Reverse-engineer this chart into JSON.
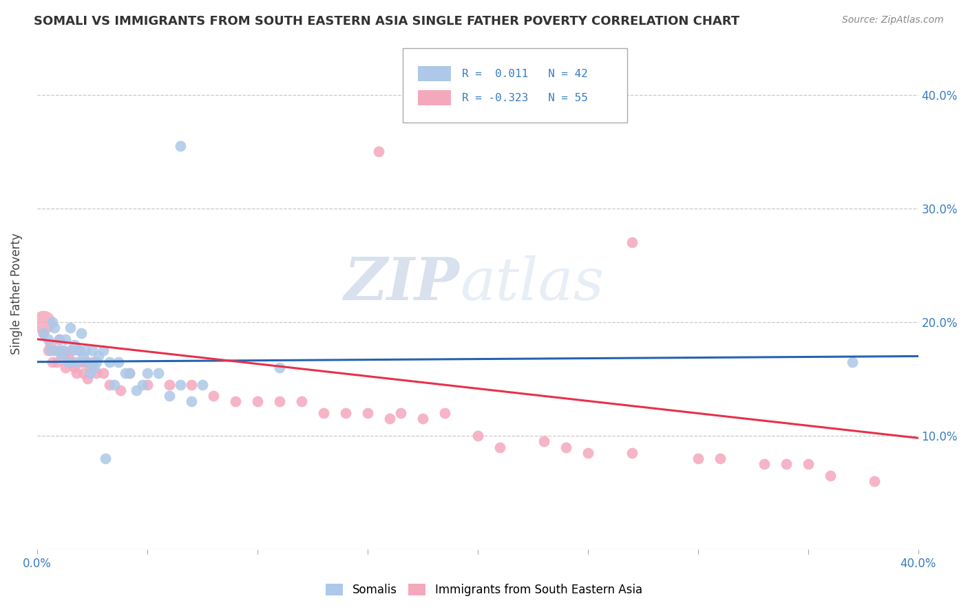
{
  "title": "SOMALI VS IMMIGRANTS FROM SOUTH EASTERN ASIA SINGLE FATHER POVERTY CORRELATION CHART",
  "source": "Source: ZipAtlas.com",
  "ylabel": "Single Father Poverty",
  "xlim": [
    0.0,
    0.4
  ],
  "ylim": [
    0.0,
    0.45
  ],
  "yticks": [
    0.1,
    0.2,
    0.3,
    0.4
  ],
  "ytick_labels": [
    "10.0%",
    "20.0%",
    "30.0%",
    "40.0%"
  ],
  "xticks": [
    0.0,
    0.05,
    0.1,
    0.15,
    0.2,
    0.25,
    0.3,
    0.35,
    0.4
  ],
  "somali_R": "0.011",
  "somali_N": "42",
  "sea_R": "-0.323",
  "sea_N": "55",
  "legend_labels": [
    "Somalis",
    "Immigrants from South Eastern Asia"
  ],
  "somali_color": "#adc8e8",
  "sea_color": "#f4a8bc",
  "line_somali_color": "#2563b0",
  "line_sea_color": "#e8304a",
  "background_color": "#ffffff",
  "somali_x": [
    0.003,
    0.005,
    0.006,
    0.007,
    0.008,
    0.009,
    0.01,
    0.011,
    0.012,
    0.013,
    0.014,
    0.015,
    0.016,
    0.017,
    0.018,
    0.019,
    0.02,
    0.021,
    0.022,
    0.023,
    0.024,
    0.025,
    0.026,
    0.027,
    0.028,
    0.03,
    0.031,
    0.033,
    0.035,
    0.037,
    0.04,
    0.042,
    0.045,
    0.048,
    0.05,
    0.055,
    0.06,
    0.065,
    0.07,
    0.075,
    0.11,
    0.37
  ],
  "somali_y": [
    0.19,
    0.185,
    0.175,
    0.2,
    0.195,
    0.175,
    0.185,
    0.17,
    0.175,
    0.185,
    0.165,
    0.195,
    0.175,
    0.18,
    0.165,
    0.175,
    0.19,
    0.17,
    0.175,
    0.165,
    0.155,
    0.175,
    0.16,
    0.165,
    0.17,
    0.175,
    0.08,
    0.165,
    0.145,
    0.165,
    0.155,
    0.155,
    0.14,
    0.145,
    0.155,
    0.155,
    0.135,
    0.145,
    0.13,
    0.145,
    0.16,
    0.165
  ],
  "sea_x": [
    0.003,
    0.005,
    0.006,
    0.007,
    0.008,
    0.009,
    0.01,
    0.011,
    0.012,
    0.013,
    0.014,
    0.015,
    0.016,
    0.017,
    0.018,
    0.019,
    0.02,
    0.021,
    0.022,
    0.023,
    0.024,
    0.025,
    0.027,
    0.03,
    0.033,
    0.038,
    0.042,
    0.05,
    0.06,
    0.07,
    0.08,
    0.09,
    0.1,
    0.11,
    0.12,
    0.13,
    0.14,
    0.15,
    0.16,
    0.165,
    0.175,
    0.185,
    0.2,
    0.21,
    0.23,
    0.24,
    0.25,
    0.27,
    0.3,
    0.31,
    0.33,
    0.34,
    0.35,
    0.36,
    0.38
  ],
  "sea_y": [
    0.19,
    0.175,
    0.18,
    0.165,
    0.175,
    0.165,
    0.185,
    0.175,
    0.17,
    0.16,
    0.17,
    0.175,
    0.165,
    0.16,
    0.155,
    0.175,
    0.165,
    0.155,
    0.165,
    0.15,
    0.16,
    0.165,
    0.155,
    0.155,
    0.145,
    0.14,
    0.155,
    0.145,
    0.145,
    0.145,
    0.135,
    0.13,
    0.13,
    0.13,
    0.13,
    0.12,
    0.12,
    0.12,
    0.115,
    0.12,
    0.115,
    0.12,
    0.1,
    0.09,
    0.095,
    0.09,
    0.085,
    0.085,
    0.08,
    0.08,
    0.075,
    0.075,
    0.075,
    0.065,
    0.06
  ],
  "somali_outlier_x": [
    0.06
  ],
  "somali_outlier_y": [
    0.355
  ],
  "sea_outlier_x": [
    0.12
  ],
  "sea_outlier_y": [
    0.35
  ],
  "blue_big_x": [
    0.003
  ],
  "blue_big_y": [
    0.2
  ]
}
